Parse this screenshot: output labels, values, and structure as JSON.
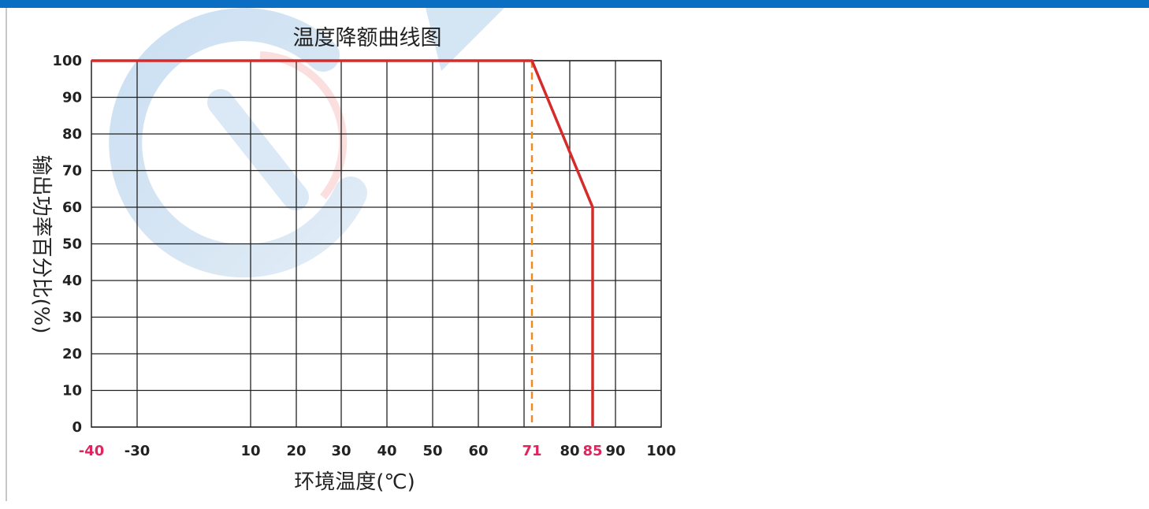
{
  "colors": {
    "top_bar": "#0a6fc2",
    "line": "#d62b2b",
    "dashed": "#f08a24",
    "highlight_tick": "#e0245e",
    "grid": "#222222",
    "text": "#222222"
  },
  "chart_data": {
    "type": "line",
    "title": "温度降额曲线图",
    "xlabel": "环境温度(℃)",
    "ylabel": "输出功率百分比(%)",
    "xlim": [
      -40,
      100
    ],
    "ylim": [
      0,
      100
    ],
    "x_ticks": [
      {
        "value": -40,
        "label": "-40",
        "highlight": true
      },
      {
        "value": -30,
        "label": "-30",
        "highlight": false
      },
      {
        "value": 10,
        "label": "10",
        "highlight": false
      },
      {
        "value": 20,
        "label": "20",
        "highlight": false
      },
      {
        "value": 30,
        "label": "30",
        "highlight": false
      },
      {
        "value": 40,
        "label": "40",
        "highlight": false
      },
      {
        "value": 50,
        "label": "50",
        "highlight": false
      },
      {
        "value": 60,
        "label": "60",
        "highlight": false
      },
      {
        "value": 71,
        "label": "71",
        "highlight": true
      },
      {
        "value": 80,
        "label": "80",
        "highlight": false
      },
      {
        "value": 85,
        "label": "85",
        "highlight": true
      },
      {
        "value": 90,
        "label": "90",
        "highlight": false
      },
      {
        "value": 100,
        "label": "100",
        "highlight": false
      }
    ],
    "x_grid": [
      -30,
      10,
      20,
      30,
      40,
      50,
      60,
      70,
      80,
      90
    ],
    "y_ticks": [
      0,
      10,
      20,
      30,
      40,
      50,
      60,
      70,
      80,
      90,
      100
    ],
    "grid": true,
    "series": [
      {
        "points": [
          {
            "x": -40,
            "y": 100
          },
          {
            "x": 71,
            "y": 100
          },
          {
            "x": 85,
            "y": 60
          },
          {
            "x": 85,
            "y": 0
          }
        ]
      }
    ],
    "reference_lines": [
      {
        "x": 71,
        "style": "dashed"
      }
    ]
  }
}
